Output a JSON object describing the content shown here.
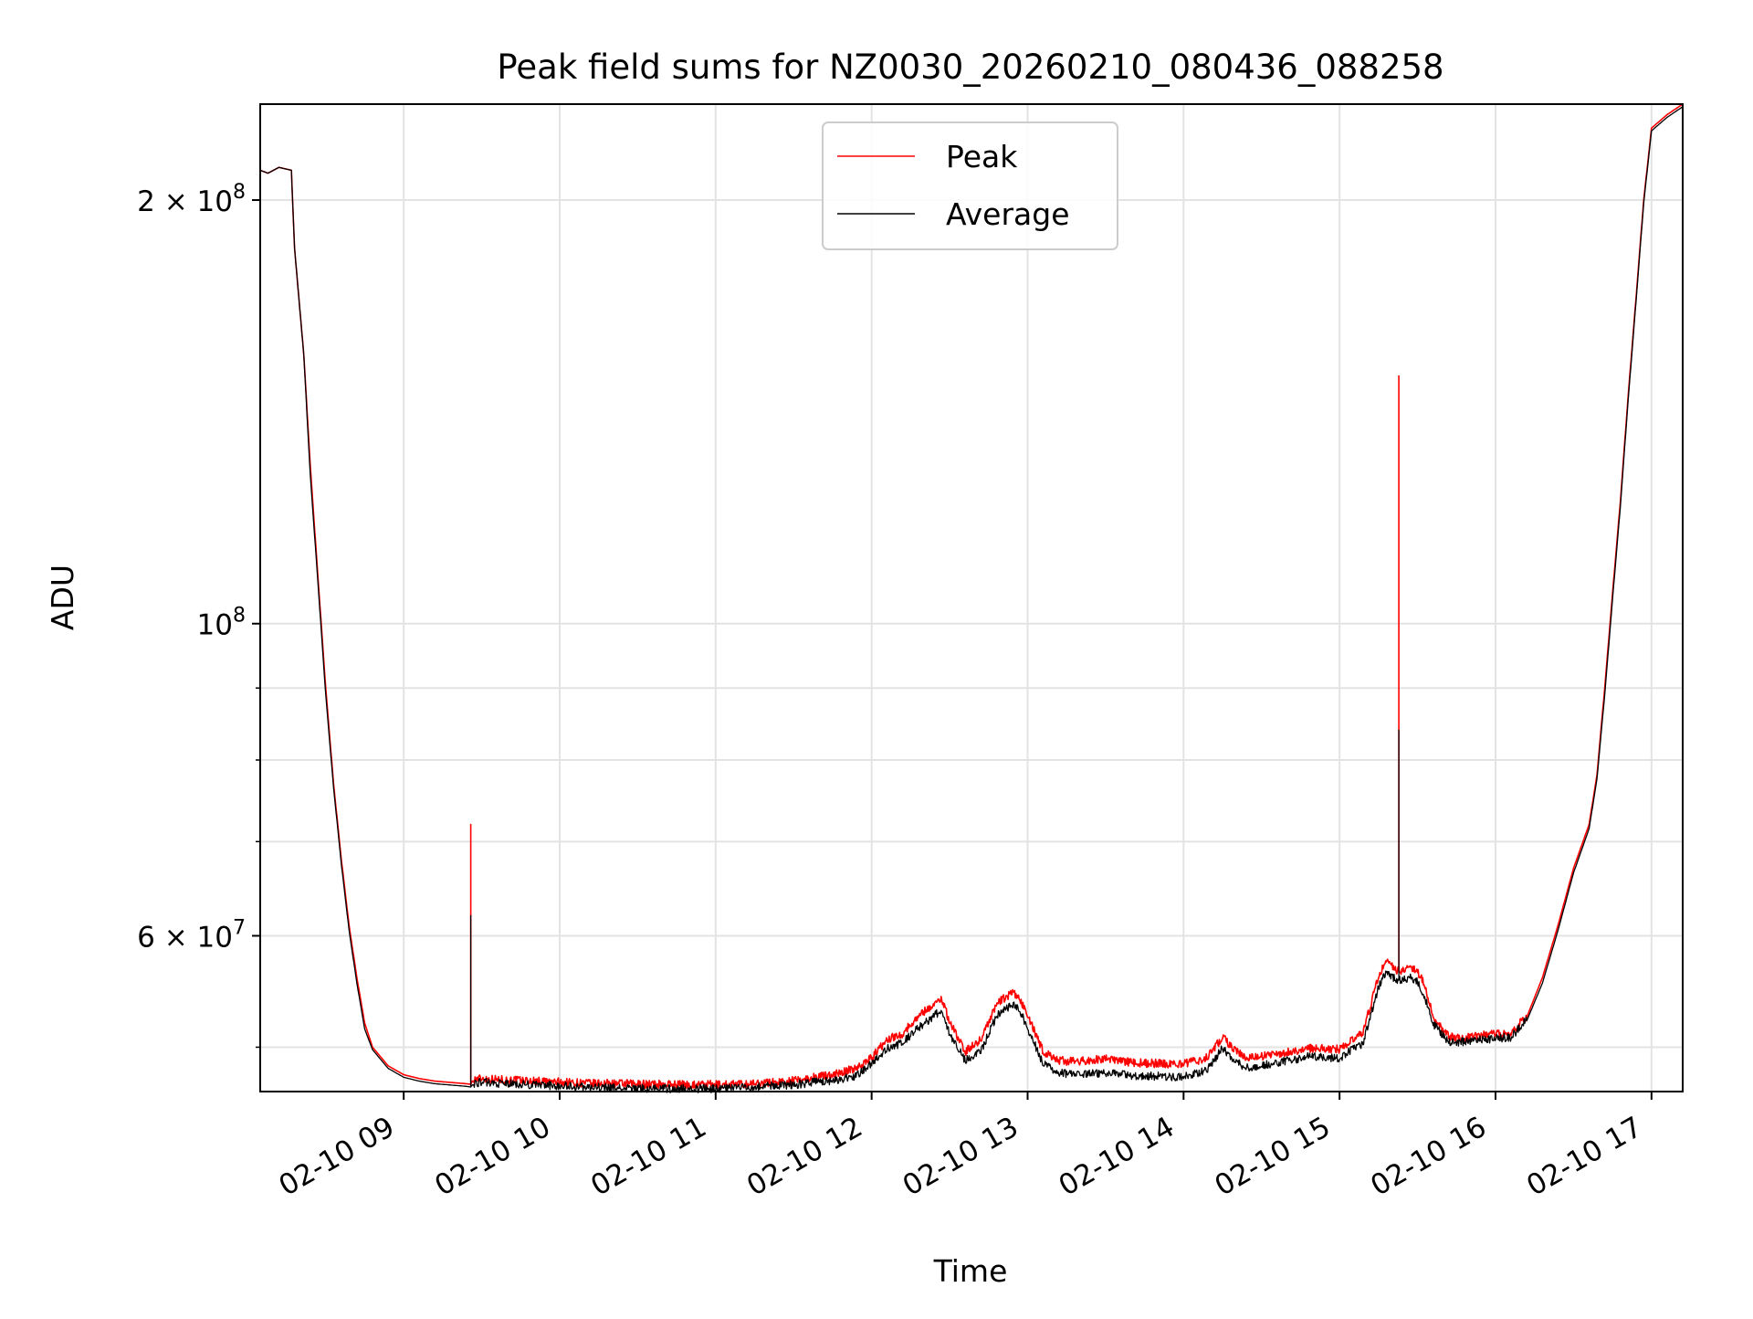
{
  "chart_data": {
    "type": "line",
    "title": "Peak field sums for NZ0030_20260210_080436_088258",
    "xlabel": "Time",
    "ylabel": "ADU",
    "yscale": "log",
    "ylim": [
      46500000,
      234000000
    ],
    "xlim_hours": [
      8.08,
      17.2
    ],
    "grid": true,
    "legend_position": "upper center",
    "x_ticks": [
      {
        "hour": 9,
        "label": "02-10 09"
      },
      {
        "hour": 10,
        "label": "02-10 10"
      },
      {
        "hour": 11,
        "label": "02-10 11"
      },
      {
        "hour": 12,
        "label": "02-10 12"
      },
      {
        "hour": 13,
        "label": "02-10 13"
      },
      {
        "hour": 14,
        "label": "02-10 14"
      },
      {
        "hour": 15,
        "label": "02-10 15"
      },
      {
        "hour": 16,
        "label": "02-10 16"
      },
      {
        "hour": 17,
        "label": "02-10 17"
      }
    ],
    "y_major_ticks": [
      {
        "value": 60000000,
        "mantissa": "6",
        "exponent": "7"
      },
      {
        "value": 100000000,
        "mantissa": "",
        "exponent": "8"
      },
      {
        "value": 200000000,
        "mantissa": "2",
        "exponent": "8"
      }
    ],
    "y_minor_ticks": [
      50000000,
      70000000,
      80000000,
      90000000
    ],
    "series": [
      {
        "name": "Peak",
        "color": "#ff0000",
        "x_hours": [
          8.08,
          8.13,
          8.2,
          8.28,
          8.3,
          8.36,
          8.4,
          8.45,
          8.5,
          8.55,
          8.6,
          8.65,
          8.7,
          8.75,
          8.8,
          8.9,
          9.0,
          9.1,
          9.2,
          9.3,
          9.4,
          9.43,
          9.4301,
          9.4302,
          9.44,
          9.5,
          9.6,
          9.8,
          10.0,
          10.2,
          10.5,
          10.8,
          11.0,
          11.2,
          11.5,
          11.8,
          11.9,
          12.0,
          12.1,
          12.2,
          12.3,
          12.4,
          12.45,
          12.5,
          12.6,
          12.7,
          12.8,
          12.9,
          12.95,
          13.0,
          13.1,
          13.2,
          13.3,
          13.5,
          13.7,
          14.0,
          14.15,
          14.25,
          14.3,
          14.4,
          14.6,
          14.8,
          15.0,
          15.15,
          15.25,
          15.3,
          15.37,
          15.38,
          15.3801,
          15.3802,
          15.39,
          15.45,
          15.5,
          15.55,
          15.6,
          15.7,
          15.8,
          16.0,
          16.1,
          16.2,
          16.3,
          16.4,
          16.5,
          16.6,
          16.65,
          16.7,
          16.75,
          16.8,
          16.85,
          16.9,
          16.95,
          17.0,
          17.1,
          17.2
        ],
        "values": [
          210000000,
          209000000,
          211000000,
          210000000,
          185000000,
          155000000,
          130000000,
          108000000,
          90000000,
          77000000,
          68000000,
          61000000,
          56000000,
          52000000,
          50000000,
          48500000,
          47800000,
          47500000,
          47300000,
          47200000,
          47100000,
          47050000,
          72000000,
          47050000,
          47300000,
          47400000,
          47300000,
          47200000,
          47100000,
          47000000,
          46950000,
          46900000,
          46900000,
          46950000,
          47200000,
          47800000,
          48200000,
          49000000,
          50500000,
          51000000,
          52500000,
          53500000,
          54000000,
          52000000,
          49500000,
          50500000,
          53500000,
          54500000,
          54000000,
          52500000,
          49500000,
          48800000,
          48700000,
          48900000,
          48600000,
          48500000,
          49000000,
          50700000,
          50000000,
          49000000,
          49300000,
          49800000,
          49700000,
          51000000,
          56000000,
          57500000,
          56500000,
          56800000,
          150000000,
          56800000,
          56500000,
          57000000,
          56500000,
          55000000,
          52500000,
          50700000,
          50600000,
          51000000,
          51000000,
          52500000,
          56000000,
          61000000,
          67000000,
          72000000,
          78000000,
          90000000,
          105000000,
          122000000,
          145000000,
          170000000,
          200000000,
          225000000,
          230000000,
          234000000
        ]
      },
      {
        "name": "Average",
        "color": "#000000",
        "x_hours": [
          8.08,
          8.13,
          8.2,
          8.28,
          8.3,
          8.36,
          8.4,
          8.45,
          8.5,
          8.55,
          8.6,
          8.65,
          8.7,
          8.75,
          8.8,
          8.9,
          9.0,
          9.1,
          9.2,
          9.3,
          9.4,
          9.43,
          9.4301,
          9.4302,
          9.44,
          9.5,
          9.6,
          9.8,
          10.0,
          10.2,
          10.5,
          10.8,
          11.0,
          11.2,
          11.5,
          11.8,
          11.9,
          12.0,
          12.1,
          12.2,
          12.3,
          12.4,
          12.45,
          12.5,
          12.6,
          12.7,
          12.8,
          12.9,
          12.95,
          13.0,
          13.1,
          13.2,
          13.3,
          13.5,
          13.7,
          14.0,
          14.15,
          14.25,
          14.3,
          14.4,
          14.6,
          14.8,
          15.0,
          15.15,
          15.25,
          15.3,
          15.37,
          15.38,
          15.3801,
          15.3802,
          15.39,
          15.45,
          15.5,
          15.55,
          15.6,
          15.7,
          15.8,
          16.0,
          16.1,
          16.2,
          16.3,
          16.4,
          16.5,
          16.6,
          16.65,
          16.7,
          16.75,
          16.8,
          16.85,
          16.9,
          16.95,
          17.0,
          17.1,
          17.2
        ],
        "values": [
          210000000,
          209000000,
          211000000,
          210000000,
          185000000,
          155000000,
          128000000,
          107000000,
          89000000,
          76500000,
          67500000,
          60500000,
          55500000,
          51500000,
          49800000,
          48300000,
          47600000,
          47300000,
          47100000,
          47000000,
          46900000,
          46850000,
          62000000,
          46850000,
          47000000,
          47100000,
          47000000,
          46900000,
          46800000,
          46700000,
          46600000,
          46600000,
          46600000,
          46700000,
          46900000,
          47300000,
          47600000,
          48500000,
          49800000,
          50200000,
          51500000,
          52500000,
          53000000,
          51000000,
          48800000,
          49500000,
          52500000,
          53500000,
          53000000,
          51500000,
          48500000,
          47800000,
          47700000,
          47800000,
          47600000,
          47500000,
          48000000,
          49800000,
          49000000,
          48200000,
          48600000,
          49100000,
          49000000,
          50200000,
          55000000,
          56500000,
          55500000,
          55800000,
          84000000,
          55800000,
          55500000,
          56000000,
          55500000,
          54000000,
          51800000,
          50300000,
          50300000,
          50600000,
          50700000,
          52200000,
          55500000,
          60500000,
          66500000,
          71500000,
          77500000,
          89000000,
          104000000,
          121000000,
          144000000,
          169000000,
          199000000,
          224000000,
          229000000,
          233000000
        ]
      }
    ]
  }
}
